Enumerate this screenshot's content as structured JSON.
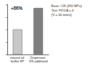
{
  "chart_data": {
    "type": "bar",
    "categories": [
      "natural oil buffer EP",
      "Dispersion SS-additized"
    ],
    "values": [
      100,
      186
    ],
    "colors": [
      "#c8c8c8",
      "#7f7f7f"
    ],
    "ylim": [
      0,
      200
    ],
    "yticks": [
      0,
      50,
      100,
      150,
      200
    ],
    "tick_labels": "x",
    "grid": false,
    "annotation": "+86%",
    "notes": [
      "Base: CIS (390 MPa)",
      "Test: FZG A = 4",
      "(V = 40 mm/s)"
    ]
  }
}
